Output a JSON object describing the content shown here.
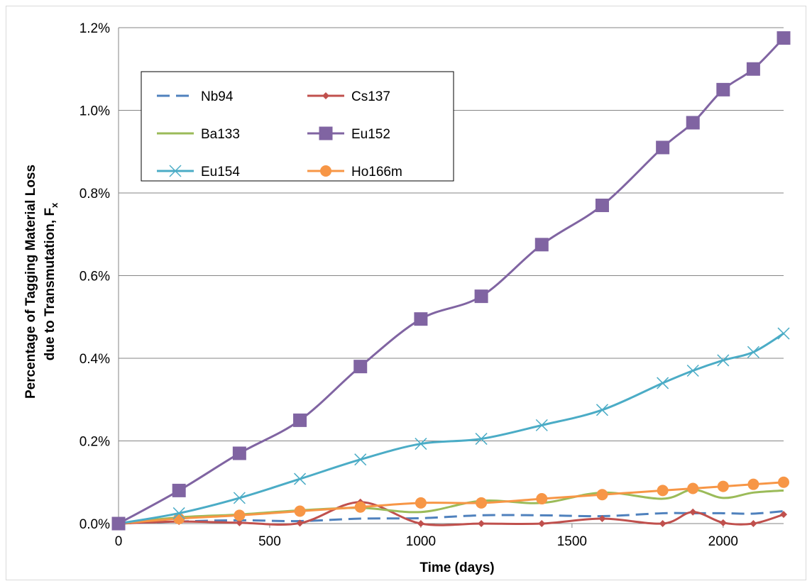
{
  "chart_data": {
    "type": "line",
    "title": "",
    "xlabel": "Time (days)",
    "ylabel_line1": "Percentage of Tagging Material Loss",
    "ylabel_line2": "due to Transmutation, F",
    "ylabel_subscript": "x",
    "x": [
      0,
      200,
      400,
      600,
      800,
      1000,
      1200,
      1400,
      1600,
      1800,
      1900,
      2000,
      2100,
      2200
    ],
    "xlim": [
      0,
      2200
    ],
    "ylim": [
      0,
      1.2
    ],
    "xticks": [
      "0",
      "500",
      "1000",
      "1500",
      "2000"
    ],
    "yticks": [
      "0.0%",
      "0.2%",
      "0.4%",
      "0.6%",
      "0.8%",
      "1.0%",
      "1.2%"
    ],
    "grid": "horizontal",
    "legend_position": "top-left",
    "series": [
      {
        "name": "Nb94",
        "color": "#4f81bd",
        "marker": "none",
        "dash": true,
        "values": [
          0.0,
          0.005,
          0.008,
          0.006,
          0.012,
          0.013,
          0.02,
          0.02,
          0.018,
          0.025,
          0.025,
          0.025,
          0.024,
          0.03
        ]
      },
      {
        "name": "Cs137",
        "color": "#c0504d",
        "marker": "diamond",
        "dash": false,
        "values": [
          0.0,
          0.005,
          0.002,
          0.001,
          0.052,
          0.0,
          0.0,
          0.0,
          0.012,
          0.0,
          0.028,
          0.002,
          0.0,
          0.022
        ]
      },
      {
        "name": "Ba133",
        "color": "#9bbb59",
        "marker": "none",
        "dash": false,
        "values": [
          0.0,
          0.015,
          0.022,
          0.032,
          0.038,
          0.028,
          0.055,
          0.05,
          0.075,
          0.06,
          0.082,
          0.062,
          0.075,
          0.08
        ]
      },
      {
        "name": "Eu152",
        "color": "#8064a2",
        "marker": "square",
        "dash": false,
        "values": [
          0.0,
          0.08,
          0.17,
          0.25,
          0.38,
          0.495,
          0.55,
          0.675,
          0.77,
          0.91,
          0.97,
          1.05,
          1.1,
          1.175
        ]
      },
      {
        "name": "Eu154",
        "color": "#4bacc6",
        "marker": "x",
        "dash": false,
        "values": [
          0.0,
          0.025,
          0.062,
          0.108,
          0.155,
          0.193,
          0.205,
          0.238,
          0.275,
          0.34,
          0.37,
          0.395,
          0.415,
          0.46
        ]
      },
      {
        "name": "Ho166m",
        "color": "#f79646",
        "marker": "circle",
        "dash": false,
        "values": [
          0.0,
          0.012,
          0.02,
          0.03,
          0.04,
          0.05,
          0.05,
          0.06,
          0.07,
          0.08,
          0.085,
          0.09,
          0.095,
          0.1
        ]
      }
    ]
  }
}
